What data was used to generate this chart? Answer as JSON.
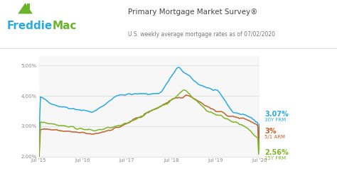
{
  "title": "Primary Mortgage Market Survey®",
  "subtitle": "U.S. weekly average mortgage rates as of 07/02/2020",
  "freddie_blue": "#29abe2",
  "freddie_green": "#6ab42d",
  "bg_color": "#ffffff",
  "line_30y_color": "#29abe2",
  "line_5_1_color": "#c0622b",
  "line_15y_color": "#7ab827",
  "ylim": [
    2.0,
    5.3
  ],
  "yticks": [
    2.0,
    3.0,
    4.0,
    5.0
  ],
  "ytick_labels": [
    "2.00%",
    "3.00%",
    "4.00%",
    "5.00%"
  ],
  "label_30y_pct": "3.07%",
  "label_30y_name": "30Y FRM",
  "label_5_1_pct": "3%",
  "label_5_1_name": "5/1 ARM",
  "label_15y_pct": "2.56%",
  "label_15y_name": "15Y FRM",
  "grid_color": "#dddddd",
  "tick_color": "#888888",
  "header_border_color": "#dddddd"
}
